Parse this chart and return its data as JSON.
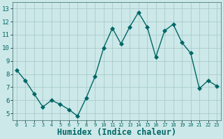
{
  "x": [
    0,
    1,
    2,
    3,
    4,
    5,
    6,
    7,
    8,
    9,
    10,
    11,
    12,
    13,
    14,
    15,
    16,
    17,
    18,
    19,
    20,
    21,
    22,
    23
  ],
  "y": [
    8.3,
    7.5,
    6.5,
    5.5,
    6.0,
    5.7,
    5.3,
    4.8,
    6.2,
    7.8,
    10.0,
    11.5,
    10.3,
    11.6,
    12.7,
    11.6,
    9.3,
    11.3,
    11.8,
    10.4,
    9.6,
    6.9,
    7.5,
    7.1
  ],
  "xlabel": "Humidex (Indice chaleur)",
  "ylim": [
    4.5,
    13.5
  ],
  "xlim": [
    -0.5,
    23.5
  ],
  "yticks": [
    5,
    6,
    7,
    8,
    9,
    10,
    11,
    12,
    13
  ],
  "xticks": [
    0,
    1,
    2,
    3,
    4,
    5,
    6,
    7,
    8,
    9,
    10,
    11,
    12,
    13,
    14,
    15,
    16,
    17,
    18,
    19,
    20,
    21,
    22,
    23
  ],
  "line_color": "#006666",
  "marker_color": "#006666",
  "bg_color": "#cce8e8",
  "grid_color": "#aacccc",
  "xlabel_color": "#006666",
  "tick_fontsize": 6.5,
  "xlabel_fontsize": 8.5
}
